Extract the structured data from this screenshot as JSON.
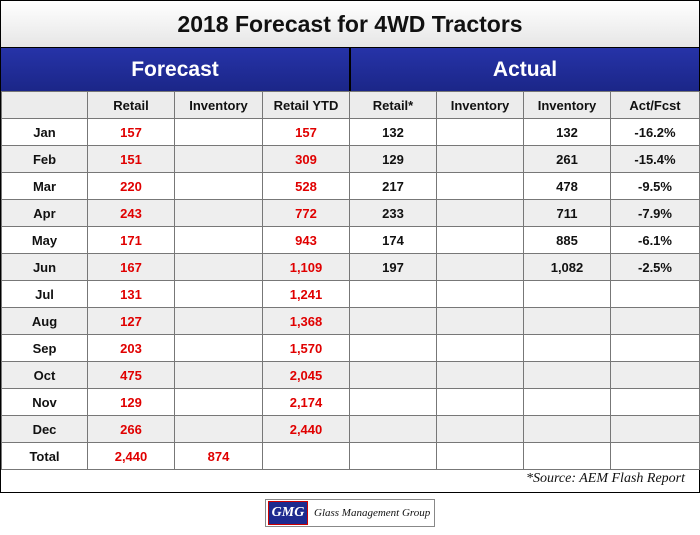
{
  "title": "2018 Forecast for 4WD Tractors",
  "sections": {
    "forecast": "Forecast",
    "actual": "Actual"
  },
  "columns": [
    "",
    "Retail",
    "Inventory",
    "Retail YTD",
    "Retail*",
    "Inventory",
    "Inventory",
    "Act/Fcst"
  ],
  "rows": [
    {
      "month": "Jan",
      "retail": "157",
      "inventory": "",
      "retail_ytd": "157",
      "act_retail": "132",
      "act_inventory": "",
      "act_inventory2": "132",
      "act_fcst": "-16.2%"
    },
    {
      "month": "Feb",
      "retail": "151",
      "inventory": "",
      "retail_ytd": "309",
      "act_retail": "129",
      "act_inventory": "",
      "act_inventory2": "261",
      "act_fcst": "-15.4%"
    },
    {
      "month": "Mar",
      "retail": "220",
      "inventory": "",
      "retail_ytd": "528",
      "act_retail": "217",
      "act_inventory": "",
      "act_inventory2": "478",
      "act_fcst": "-9.5%"
    },
    {
      "month": "Apr",
      "retail": "243",
      "inventory": "",
      "retail_ytd": "772",
      "act_retail": "233",
      "act_inventory": "",
      "act_inventory2": "711",
      "act_fcst": "-7.9%"
    },
    {
      "month": "May",
      "retail": "171",
      "inventory": "",
      "retail_ytd": "943",
      "act_retail": "174",
      "act_inventory": "",
      "act_inventory2": "885",
      "act_fcst": "-6.1%"
    },
    {
      "month": "Jun",
      "retail": "167",
      "inventory": "",
      "retail_ytd": "1,109",
      "act_retail": "197",
      "act_inventory": "",
      "act_inventory2": "1,082",
      "act_fcst": "-2.5%"
    },
    {
      "month": "Jul",
      "retail": "131",
      "inventory": "",
      "retail_ytd": "1,241",
      "act_retail": "",
      "act_inventory": "",
      "act_inventory2": "",
      "act_fcst": ""
    },
    {
      "month": "Aug",
      "retail": "127",
      "inventory": "",
      "retail_ytd": "1,368",
      "act_retail": "",
      "act_inventory": "",
      "act_inventory2": "",
      "act_fcst": ""
    },
    {
      "month": "Sep",
      "retail": "203",
      "inventory": "",
      "retail_ytd": "1,570",
      "act_retail": "",
      "act_inventory": "",
      "act_inventory2": "",
      "act_fcst": ""
    },
    {
      "month": "Oct",
      "retail": "475",
      "inventory": "",
      "retail_ytd": "2,045",
      "act_retail": "",
      "act_inventory": "",
      "act_inventory2": "",
      "act_fcst": ""
    },
    {
      "month": "Nov",
      "retail": "129",
      "inventory": "",
      "retail_ytd": "2,174",
      "act_retail": "",
      "act_inventory": "",
      "act_inventory2": "",
      "act_fcst": ""
    },
    {
      "month": "Dec",
      "retail": "266",
      "inventory": "",
      "retail_ytd": "2,440",
      "act_retail": "",
      "act_inventory": "",
      "act_inventory2": "",
      "act_fcst": ""
    },
    {
      "month": "Total",
      "retail": "2,440",
      "inventory": "874",
      "retail_ytd": "",
      "act_retail": "",
      "act_inventory": "",
      "act_inventory2": "",
      "act_fcst": ""
    }
  ],
  "source": "*Source: AEM Flash Report",
  "logo": {
    "mark": "GMG",
    "text": "Glass Management Group"
  },
  "colors": {
    "band": "#1f2b96",
    "forecast_value": "#e00000",
    "alt_row": "#eeeeee"
  },
  "chart_data": {
    "type": "table",
    "title": "2018 Forecast for 4WD Tractors",
    "column_groups": [
      {
        "name": "Forecast",
        "columns": [
          "Retail",
          "Inventory",
          "Retail YTD"
        ]
      },
      {
        "name": "Actual",
        "columns": [
          "Retail*",
          "Inventory",
          "Inventory",
          "Act/Fcst"
        ]
      }
    ],
    "categories": [
      "Jan",
      "Feb",
      "Mar",
      "Apr",
      "May",
      "Jun",
      "Jul",
      "Aug",
      "Sep",
      "Oct",
      "Nov",
      "Dec",
      "Total"
    ],
    "series": [
      {
        "name": "Retail",
        "values": [
          157,
          151,
          220,
          243,
          171,
          167,
          131,
          127,
          203,
          475,
          129,
          266,
          2440
        ]
      },
      {
        "name": "Inventory",
        "values": [
          null,
          null,
          null,
          null,
          null,
          null,
          null,
          null,
          null,
          null,
          null,
          null,
          874
        ]
      },
      {
        "name": "Retail YTD",
        "values": [
          157,
          309,
          528,
          772,
          943,
          1109,
          1241,
          1368,
          1570,
          2045,
          2174,
          2440,
          null
        ]
      },
      {
        "name": "Retail*",
        "values": [
          132,
          129,
          217,
          233,
          174,
          197,
          null,
          null,
          null,
          null,
          null,
          null,
          null
        ]
      },
      {
        "name": "Inventory",
        "values": [
          132,
          261,
          478,
          711,
          885,
          1082,
          null,
          null,
          null,
          null,
          null,
          null,
          null
        ]
      },
      {
        "name": "Act/Fcst",
        "values": [
          -16.2,
          -15.4,
          -9.5,
          -7.9,
          -6.1,
          -2.5,
          null,
          null,
          null,
          null,
          null,
          null,
          null
        ]
      }
    ]
  }
}
